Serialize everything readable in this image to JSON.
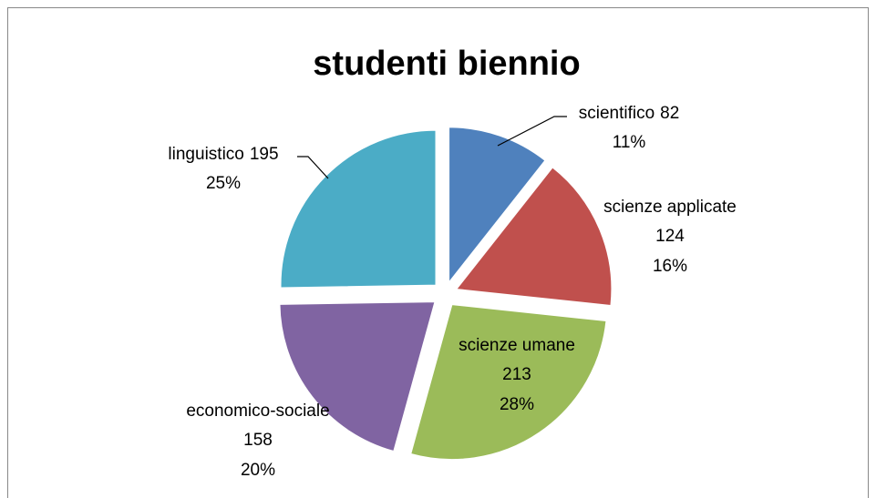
{
  "chart_data": {
    "type": "pie",
    "title": "studenti biennio",
    "categories": [
      "scientifico",
      "scienze applicate",
      "scienze umane",
      "economico-sociale",
      "linguistico"
    ],
    "values": [
      82,
      124,
      213,
      158,
      195
    ],
    "percent_labels": [
      "11%",
      "16%",
      "28%",
      "20%",
      "25%"
    ],
    "colors": [
      "#4f81bd",
      "#c0504d",
      "#9bbb59",
      "#8064a2",
      "#4bacc6"
    ]
  }
}
